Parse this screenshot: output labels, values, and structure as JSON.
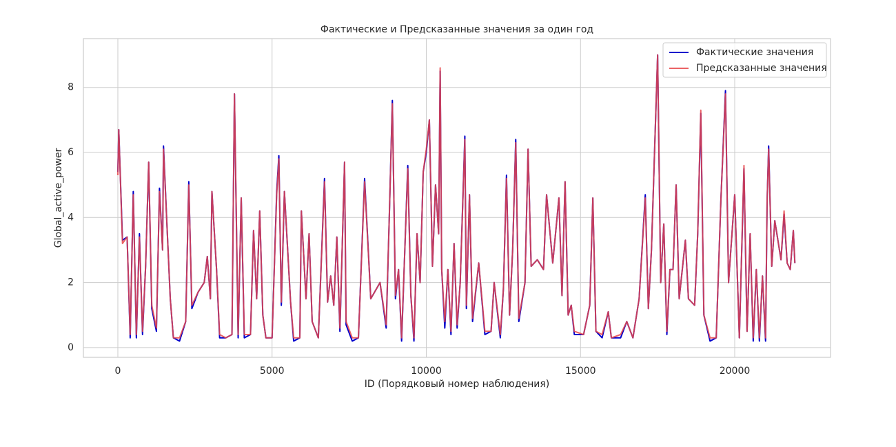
{
  "chart_data": {
    "type": "line",
    "title": "Фактические и Предсказанные значения за один год",
    "xlabel": "ID (Порядковый номер наблюдения)",
    "ylabel": "Global_active_power",
    "x": [
      0,
      30,
      150,
      300,
      400,
      500,
      600,
      700,
      800,
      900,
      1000,
      1100,
      1250,
      1350,
      1450,
      1480,
      1600,
      1700,
      1800,
      2000,
      2200,
      2300,
      2400,
      2600,
      2800,
      2900,
      3000,
      3050,
      3200,
      3300,
      3500,
      3700,
      3780,
      3900,
      4000,
      4100,
      4300,
      4400,
      4500,
      4600,
      4700,
      4800,
      5000,
      5150,
      5220,
      5300,
      5400,
      5600,
      5700,
      5900,
      5950,
      6100,
      6200,
      6300,
      6500,
      6700,
      6800,
      6900,
      7000,
      7100,
      7200,
      7350,
      7400,
      7600,
      7800,
      8000,
      8200,
      8500,
      8700,
      8800,
      8900,
      9000,
      9100,
      9200,
      9400,
      9500,
      9600,
      9700,
      9800,
      9900,
      10000,
      10100,
      10200,
      10300,
      10400,
      10450,
      10500,
      10600,
      10700,
      10800,
      10900,
      11000,
      11100,
      11250,
      11300,
      11400,
      11500,
      11700,
      11900,
      12100,
      12200,
      12400,
      12500,
      12600,
      12700,
      12800,
      12900,
      13000,
      13200,
      13300,
      13400,
      13600,
      13800,
      13900,
      14100,
      14300,
      14400,
      14500,
      14600,
      14700,
      14800,
      15100,
      15300,
      15400,
      15500,
      15700,
      15900,
      16000,
      16300,
      16500,
      16700,
      16900,
      17100,
      17200,
      17300,
      17500,
      17600,
      17700,
      17800,
      17900,
      18000,
      18100,
      18200,
      18400,
      18500,
      18700,
      18800,
      18900,
      19000,
      19200,
      19400,
      19550,
      19700,
      19800,
      20000,
      20150,
      20300,
      20400,
      20500,
      20600,
      20700,
      20800,
      20900,
      21000,
      21050,
      21100,
      21200,
      21300,
      21500,
      21600,
      21700,
      21800,
      21900,
      21950
    ],
    "series": [
      {
        "name": "Фактические значения",
        "color": "#0000cc",
        "values": [
          5.4,
          6.7,
          3.3,
          3.4,
          0.3,
          4.8,
          0.3,
          3.5,
          0.4,
          2.5,
          5.7,
          1.2,
          0.5,
          4.9,
          3.0,
          6.2,
          3.6,
          1.5,
          0.3,
          0.2,
          0.8,
          5.1,
          1.2,
          1.7,
          2.0,
          2.8,
          1.5,
          4.8,
          2.4,
          0.3,
          0.3,
          0.4,
          7.8,
          0.3,
          4.6,
          0.3,
          0.4,
          3.6,
          1.5,
          4.2,
          1.0,
          0.3,
          0.3,
          4.8,
          5.9,
          1.3,
          4.8,
          1.4,
          0.2,
          0.3,
          4.2,
          1.5,
          3.5,
          0.8,
          0.3,
          5.2,
          1.4,
          2.2,
          1.3,
          3.4,
          0.5,
          5.7,
          0.7,
          0.2,
          0.3,
          5.2,
          1.5,
          2.0,
          0.6,
          4.0,
          7.6,
          1.5,
          2.4,
          0.2,
          5.6,
          1.6,
          0.2,
          3.5,
          2.0,
          5.4,
          6.0,
          7.0,
          2.5,
          5.0,
          3.5,
          8.5,
          2.4,
          0.6,
          2.4,
          0.4,
          3.2,
          0.6,
          2.0,
          6.5,
          1.2,
          4.7,
          0.8,
          2.6,
          0.4,
          0.5,
          2.0,
          0.3,
          1.8,
          5.3,
          1.0,
          3.0,
          6.4,
          0.8,
          2.0,
          6.1,
          2.5,
          2.7,
          2.4,
          4.7,
          2.6,
          4.6,
          1.6,
          5.1,
          1.0,
          1.3,
          0.4,
          0.4,
          1.3,
          4.6,
          0.5,
          0.3,
          1.1,
          0.3,
          0.3,
          0.8,
          0.3,
          1.5,
          4.7,
          1.2,
          3.0,
          9.0,
          2.0,
          3.8,
          0.4,
          2.4,
          2.4,
          5.0,
          1.5,
          3.3,
          1.5,
          1.3,
          3.5,
          7.2,
          1.0,
          0.2,
          0.3,
          4.5,
          7.9,
          2.0,
          4.7,
          0.3,
          5.5,
          0.5,
          3.5,
          0.2,
          2.4,
          0.2,
          2.2,
          0.2,
          4.5,
          6.2,
          2.5,
          3.9,
          2.7,
          4.1,
          2.6,
          2.4,
          3.6,
          2.6
        ]
      },
      {
        "name": "Предсказанные значения",
        "color": "#e8474a",
        "values": [
          5.3,
          6.7,
          3.2,
          3.4,
          0.4,
          4.7,
          0.4,
          3.4,
          0.5,
          2.5,
          5.7,
          1.3,
          0.6,
          4.8,
          3.0,
          6.1,
          3.6,
          1.5,
          0.3,
          0.3,
          0.8,
          5.0,
          1.3,
          1.7,
          2.0,
          2.8,
          1.5,
          4.8,
          2.4,
          0.4,
          0.3,
          0.4,
          7.8,
          0.4,
          4.6,
          0.4,
          0.4,
          3.6,
          1.5,
          4.2,
          1.0,
          0.3,
          0.3,
          4.7,
          5.8,
          1.4,
          4.8,
          1.4,
          0.3,
          0.3,
          4.2,
          1.5,
          3.5,
          0.8,
          0.3,
          5.1,
          1.4,
          2.2,
          1.3,
          3.4,
          0.6,
          5.7,
          0.8,
          0.3,
          0.3,
          5.1,
          1.5,
          2.0,
          0.7,
          4.0,
          7.5,
          1.6,
          2.4,
          0.3,
          5.5,
          1.6,
          0.3,
          3.5,
          2.0,
          5.4,
          6.1,
          7.0,
          2.5,
          5.0,
          3.5,
          8.6,
          2.4,
          0.8,
          2.4,
          0.5,
          3.2,
          0.7,
          2.0,
          6.4,
          1.3,
          4.7,
          0.9,
          2.6,
          0.5,
          0.5,
          2.0,
          0.4,
          1.8,
          5.2,
          1.0,
          3.0,
          6.3,
          0.9,
          2.0,
          6.1,
          2.5,
          2.7,
          2.4,
          4.7,
          2.6,
          4.6,
          1.6,
          5.1,
          1.0,
          1.3,
          0.5,
          0.4,
          1.3,
          4.6,
          0.5,
          0.4,
          1.1,
          0.3,
          0.4,
          0.8,
          0.3,
          1.5,
          4.6,
          1.2,
          3.0,
          9.0,
          2.0,
          3.8,
          0.5,
          2.4,
          2.4,
          5.0,
          1.5,
          3.3,
          1.5,
          1.3,
          3.5,
          7.3,
          1.0,
          0.3,
          0.3,
          4.5,
          7.8,
          2.0,
          4.7,
          0.3,
          5.6,
          0.5,
          3.5,
          0.3,
          2.4,
          0.3,
          2.2,
          0.3,
          4.5,
          6.1,
          2.5,
          3.9,
          2.7,
          4.2,
          2.6,
          2.4,
          3.6,
          2.6
        ]
      }
    ],
    "xlim": [
      -1117,
      23106
    ],
    "xticks": [
      0,
      5000,
      10000,
      15000,
      20000
    ],
    "ylim": [
      -0.3,
      9.5
    ],
    "yticks": [
      0,
      2,
      4,
      6,
      8
    ],
    "grid": true,
    "legend": "upper right"
  }
}
